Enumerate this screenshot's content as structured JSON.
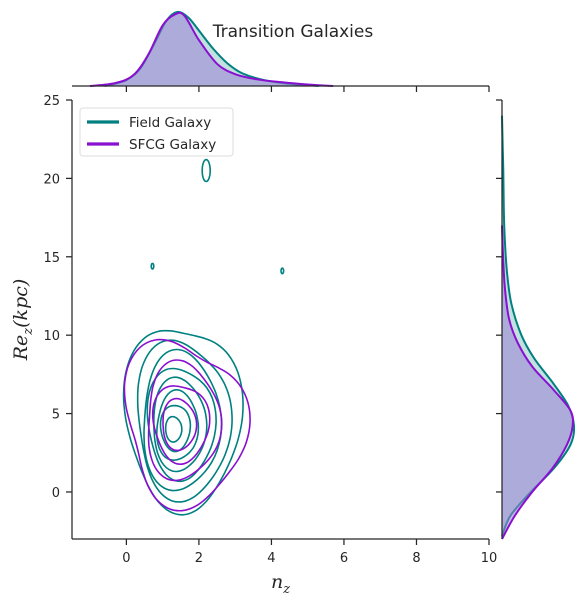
{
  "chart_data": {
    "type": "kde-joint",
    "title": "Transition Galaxies",
    "xlabel": "n_z",
    "ylabel": "Re_z(kpc)",
    "xlim": [
      -1.5,
      10
    ],
    "ylim": [
      -3,
      25
    ],
    "xticks": [
      0,
      2,
      4,
      6,
      8,
      10
    ],
    "yticks": [
      0,
      5,
      10,
      15,
      20,
      25
    ],
    "grid": false,
    "legend_position": "top-left",
    "series": [
      {
        "name": "Field Galaxy",
        "color": "#008080",
        "fill": "#8fc9c7",
        "contours": [
          {
            "cx": 1.55,
            "cy": 4.8,
            "rx": 3.1,
            "ry": 12.1,
            "pts": 11,
            "amp": 0.08,
            "ph": 0.3
          },
          {
            "cx": 1.55,
            "cy": 4.6,
            "rx": 2.6,
            "ry": 10.0,
            "pts": 11,
            "amp": 0.07,
            "ph": 1.1
          },
          {
            "cx": 1.5,
            "cy": 4.5,
            "rx": 2.2,
            "ry": 8.6,
            "pts": 11,
            "amp": 0.06,
            "ph": 2.0
          },
          {
            "cx": 1.5,
            "cy": 4.4,
            "rx": 1.85,
            "ry": 7.2,
            "pts": 11,
            "amp": 0.06,
            "ph": 0.7
          },
          {
            "cx": 1.45,
            "cy": 4.3,
            "rx": 1.5,
            "ry": 5.8,
            "pts": 11,
            "amp": 0.05,
            "ph": 1.6
          },
          {
            "cx": 1.4,
            "cy": 4.2,
            "rx": 1.15,
            "ry": 4.4,
            "pts": 11,
            "amp": 0.05,
            "ph": 2.5
          },
          {
            "cx": 1.35,
            "cy": 4.1,
            "rx": 0.8,
            "ry": 3.0,
            "pts": 11,
            "amp": 0.04,
            "ph": 0.2
          },
          {
            "cx": 1.3,
            "cy": 4.0,
            "rx": 0.45,
            "ry": 1.6,
            "pts": 11,
            "amp": 0.03,
            "ph": 1.3
          },
          {
            "cx": 2.2,
            "cy": 20.5,
            "rx": 0.22,
            "ry": 1.4,
            "pts": 9,
            "amp": 0.0,
            "ph": 0.0
          },
          {
            "cx": 0.72,
            "cy": 14.4,
            "rx": 0.07,
            "ry": 0.35,
            "pts": 9,
            "amp": 0.0,
            "ph": 0.0
          },
          {
            "cx": 4.3,
            "cy": 14.1,
            "rx": 0.07,
            "ry": 0.35,
            "pts": 9,
            "amp": 0.0,
            "ph": 0.0
          }
        ],
        "x_marginal": [
          [
            -0.6,
            0.0
          ],
          [
            0.0,
            0.08
          ],
          [
            0.4,
            0.25
          ],
          [
            0.8,
            0.6
          ],
          [
            1.1,
            0.88
          ],
          [
            1.4,
            1.0
          ],
          [
            1.7,
            0.93
          ],
          [
            2.0,
            0.75
          ],
          [
            2.4,
            0.5
          ],
          [
            2.8,
            0.3
          ],
          [
            3.2,
            0.17
          ],
          [
            3.8,
            0.08
          ],
          [
            4.5,
            0.03
          ],
          [
            5.3,
            0.0
          ]
        ],
        "y_marginal": [
          [
            -2.8,
            0.0
          ],
          [
            -1.5,
            0.12
          ],
          [
            0.0,
            0.4
          ],
          [
            1.5,
            0.72
          ],
          [
            3.0,
            0.95
          ],
          [
            4.2,
            1.0
          ],
          [
            5.5,
            0.92
          ],
          [
            7.0,
            0.7
          ],
          [
            8.5,
            0.45
          ],
          [
            10.0,
            0.27
          ],
          [
            12.0,
            0.13
          ],
          [
            14.0,
            0.07
          ],
          [
            16.0,
            0.04
          ],
          [
            18.0,
            0.025
          ],
          [
            20.0,
            0.02
          ],
          [
            22.0,
            0.01
          ],
          [
            24.0,
            0.0
          ]
        ]
      },
      {
        "name": "SFCG Galaxy",
        "color": "#8a10d0",
        "fill": "#9b7fd4",
        "contours": [
          {
            "cx": 1.6,
            "cy": 4.4,
            "rx": 3.3,
            "ry": 10.4,
            "pts": 11,
            "amp": 0.12,
            "ph": 0.9
          },
          {
            "cx": 1.55,
            "cy": 4.5,
            "rx": 2.1,
            "ry": 7.2,
            "pts": 11,
            "amp": 0.08,
            "ph": 1.9
          },
          {
            "cx": 1.5,
            "cy": 4.4,
            "rx": 1.5,
            "ry": 5.1,
            "pts": 11,
            "amp": 0.07,
            "ph": 0.4
          },
          {
            "cx": 1.45,
            "cy": 4.3,
            "rx": 0.95,
            "ry": 3.2,
            "pts": 11,
            "amp": 0.05,
            "ph": 1.5
          }
        ],
        "x_marginal": [
          [
            -1.0,
            0.0
          ],
          [
            -0.3,
            0.04
          ],
          [
            0.2,
            0.15
          ],
          [
            0.6,
            0.42
          ],
          [
            1.0,
            0.82
          ],
          [
            1.35,
            0.97
          ],
          [
            1.6,
            0.95
          ],
          [
            2.0,
            0.62
          ],
          [
            2.5,
            0.3
          ],
          [
            3.0,
            0.16
          ],
          [
            3.6,
            0.09
          ],
          [
            4.3,
            0.05
          ],
          [
            5.0,
            0.02
          ],
          [
            5.7,
            0.0
          ]
        ],
        "y_marginal": [
          [
            -3.0,
            0.0
          ],
          [
            -1.5,
            0.18
          ],
          [
            0.0,
            0.42
          ],
          [
            1.5,
            0.7
          ],
          [
            3.0,
            0.9
          ],
          [
            4.2,
            0.98
          ],
          [
            5.2,
            0.95
          ],
          [
            6.5,
            0.72
          ],
          [
            8.0,
            0.42
          ],
          [
            9.5,
            0.22
          ],
          [
            11.0,
            0.1
          ],
          [
            13.0,
            0.04
          ],
          [
            15.0,
            0.015
          ],
          [
            17.0,
            0.0
          ]
        ]
      }
    ]
  }
}
